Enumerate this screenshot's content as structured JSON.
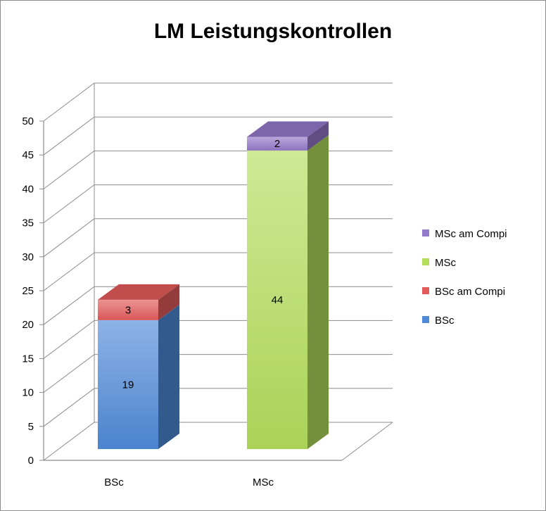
{
  "chart_data": {
    "type": "bar",
    "stacked": true,
    "style": "3d",
    "title": "LM Leistungskontrollen",
    "xlabel": "",
    "ylabel": "",
    "ylim": [
      0,
      50
    ],
    "yticks": [
      0,
      5,
      10,
      15,
      20,
      25,
      30,
      35,
      40,
      45,
      50
    ],
    "grid": true,
    "legend_position": "right",
    "categories": [
      "BSc",
      "MSc"
    ],
    "series": [
      {
        "name": "BSc",
        "values": [
          19,
          null
        ],
        "color": "#4f8ad9"
      },
      {
        "name": "BSc am Compi",
        "values": [
          3,
          null
        ],
        "color": "#e35a5a"
      },
      {
        "name": "MSc",
        "values": [
          null,
          44
        ],
        "color": "#b4dd5c"
      },
      {
        "name": "MSc am Compi",
        "values": [
          null,
          2
        ],
        "color": "#9478c9"
      }
    ],
    "legend_order": [
      "MSc am Compi",
      "MSc",
      "BSc am Compi",
      "BSc"
    ]
  }
}
